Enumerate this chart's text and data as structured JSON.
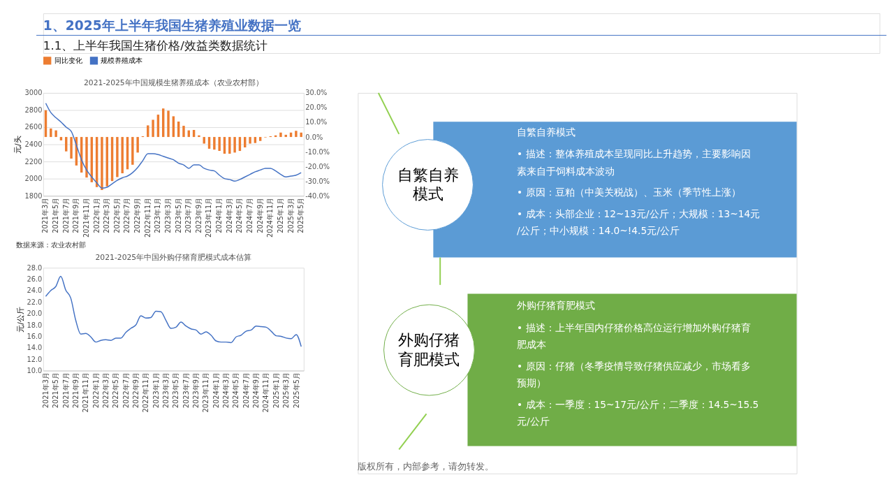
{
  "chart_data": [
    {
      "type": "other",
      "title": "1、2025年上半年我国生猪养殖业数据一览",
      "subtitle": "1.1、上半年我国生猪价格/效益类数据统计"
    },
    {
      "type": "bar",
      "title": "2021-2025年中国规模生猪养殖成本（农业农村部）",
      "ylabel": "元/头",
      "legend": "top",
      "grid": "y",
      "categories": [
        "2021年3月",
        null,
        "2021年5月",
        null,
        "2021年7月",
        null,
        "2021年9月",
        null,
        "2021年11月",
        null,
        "2022年1月",
        null,
        "2022年3月",
        null,
        "2022年5月",
        null,
        "2022年7月",
        null,
        "2022年9月",
        null,
        "2022年11月",
        null,
        "2023年1月",
        null,
        "2023年3月",
        null,
        "2023年5月",
        null,
        "2023年7月",
        null,
        "2023年9月",
        null,
        "2023年11月",
        null,
        "2024年1月",
        null,
        "2024年3月",
        null,
        "2024年5月",
        null,
        "2024年7月",
        null,
        "2024年9月",
        null,
        "2024年11月",
        null,
        "2025年1月",
        null,
        "2025年3月",
        null,
        "2025年5月"
      ],
      "ylim": [
        1800,
        3000
      ],
      "yticks": [
        1800,
        2000,
        2200,
        2400,
        2600,
        2800,
        3000
      ],
      "y2lim": [
        -40,
        30
      ],
      "y2ticks": [
        {
          "value": -40,
          "label": "-40.0%"
        },
        {
          "value": -30,
          "label": "-30.0%"
        },
        {
          "value": -20,
          "label": "-20.0%"
        },
        {
          "value": -10,
          "label": "-10.0%"
        },
        {
          "value": 0,
          "label": "0.0%"
        },
        {
          "value": 10,
          "label": "10.0%"
        },
        {
          "value": 20,
          "label": "20.0%"
        },
        {
          "value": 30,
          "label": "30.0%"
        }
      ],
      "series": [
        {
          "name": "同比变化",
          "type": "bar",
          "axis": "y2",
          "color": "#ed7d31",
          "values": [
            18.2,
            5.8,
            4.5,
            -2.3,
            -9.8,
            -14.7,
            -19.4,
            -24.2,
            -27.6,
            -30.8,
            -34.1,
            -36.1,
            -33.6,
            -30.0,
            -27.3,
            -24.7,
            -22.0,
            -18.9,
            -10.6,
            0.5,
            7.9,
            11.7,
            15.2,
            19.4,
            17.9,
            14.1,
            10.5,
            7.6,
            4.5,
            4.8,
            1.1,
            -4.5,
            -8.0,
            -8.6,
            -9.5,
            -11.4,
            -11.4,
            -10.6,
            -9.5,
            -7.1,
            -4.5,
            -4.1,
            -2.7,
            -0.3,
            0.5,
            1.1,
            3.0,
            1.5,
            3.0,
            4.2,
            3.0
          ]
        },
        {
          "name": "规模养殖成本",
          "type": "line",
          "axis": "y",
          "color": "#4472c4",
          "values": [
            2880,
            2770,
            2710,
            2660,
            2600,
            2550,
            2390,
            2220,
            2100,
            2020,
            1950,
            1890,
            1900,
            1940,
            1980,
            2010,
            2030,
            2070,
            2130,
            2210,
            2290,
            2290,
            2280,
            2260,
            2240,
            2220,
            2180,
            2160,
            2120,
            2160,
            2160,
            2120,
            2100,
            2090,
            2040,
            2000,
            1990,
            1970,
            1990,
            2020,
            2050,
            2080,
            2100,
            2120,
            2120,
            2090,
            2050,
            2020,
            2030,
            2040,
            2070
          ]
        }
      ],
      "annotations": [
        "数据来源：农业农村部"
      ]
    },
    {
      "type": "line",
      "title": "2021-2025年中国外购仔猪育肥模式成本估算",
      "ylabel": "元/公斤",
      "grid": false,
      "categories": [
        "2021年3月",
        null,
        "2021年5月",
        null,
        "2021年7月",
        null,
        "2021年9月",
        null,
        "2021年11月",
        null,
        "2022年1月",
        null,
        "2022年3月",
        null,
        "2022年5月",
        null,
        "2022年7月",
        null,
        "2022年9月",
        null,
        "2022年11月",
        null,
        "2023年1月",
        null,
        "2023年3月",
        null,
        "2023年5月",
        null,
        "2023年7月",
        null,
        "2023年9月",
        null,
        "2023年11月",
        null,
        "2024年1月",
        null,
        "2024年3月",
        null,
        "2024年5月",
        null,
        "2024年7月",
        null,
        "2024年9月",
        null,
        "2024年11月",
        null,
        "2025年1月",
        null,
        "2025年3月",
        null,
        "2025年5月",
        null
      ],
      "ylim": [
        10,
        28
      ],
      "yticks": [
        {
          "value": 10,
          "label": "10.0"
        },
        {
          "value": 12,
          "label": "12.0"
        },
        {
          "value": 14,
          "label": "14.0"
        },
        {
          "value": 16,
          "label": "16.0"
        },
        {
          "value": 18,
          "label": "18.0"
        },
        {
          "value": 20,
          "label": "20.0"
        },
        {
          "value": 22,
          "label": "22.0"
        },
        {
          "value": 24,
          "label": "24.0"
        },
        {
          "value": 26,
          "label": "26.0"
        },
        {
          "value": 28,
          "label": "28.0"
        }
      ],
      "series": [
        {
          "color": "#4472c4",
          "values": [
            23.0,
            24.0,
            24.7,
            26.5,
            24.1,
            22.7,
            18.8,
            16.4,
            16.5,
            15.9,
            15.0,
            15.3,
            15.4,
            15.3,
            15.7,
            15.7,
            16.7,
            17.4,
            18.0,
            19.6,
            19.2,
            19.3,
            20.4,
            20.3,
            18.8,
            17.4,
            17.6,
            18.5,
            17.8,
            17.3,
            17.1,
            16.4,
            16.8,
            16.2,
            15.2,
            15.0,
            15.0,
            14.9,
            15.9,
            16.2,
            16.9,
            17.1,
            17.8,
            17.7,
            17.6,
            16.9,
            16.1,
            16.0,
            15.7,
            15.6,
            16.3,
            14.2
          ]
        }
      ]
    },
    {
      "type": "other",
      "annotations": [
        "自繁自养模式",
        "自繁自养模式",
        "• 描述：整体养殖成本呈现同比上升趋势，主要影响因素来自于饲料成本波动",
        "• 原因：豆粕（中美关税战）、玉米（季节性上涨）",
        "• 成本：头部企业：12~13元/公斤；大规模：13~14元/公斤；中小规模：14.0~!4.5元/公斤",
        "外购仔猪育肥模式",
        "外购仔猪育肥模式",
        "• 描述：上半年国内仔猪价格高位运行增加外购仔猪育肥成本",
        "• 原因：仔猪（冬季疫情导致仔猪供应减少，市场看多预期）",
        "• 成本：一季度：15~17元/公斤；二季度：14.5~15.5元/公斤",
        "版权所有，内部参考，请勿转发。"
      ]
    }
  ]
}
